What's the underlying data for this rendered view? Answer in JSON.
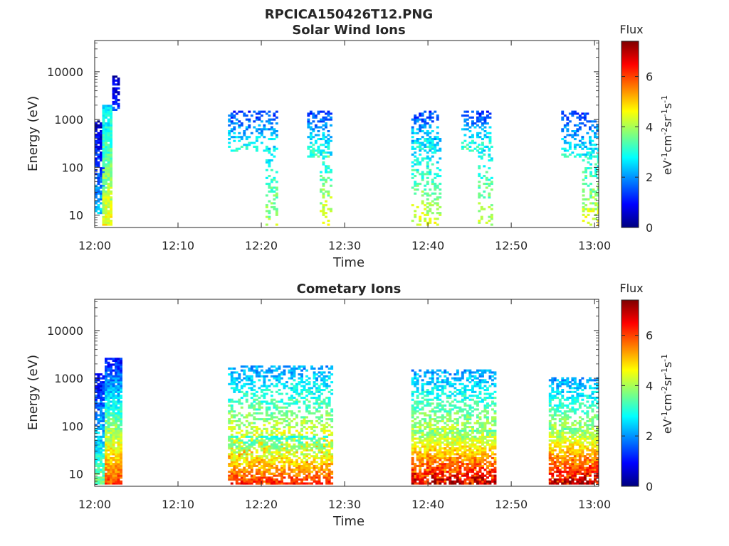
{
  "figure_title": "RPCICA150426T12.PNG",
  "colorbar": {
    "title": "Flux",
    "unit_parts": [
      "eV",
      "-1",
      "cm",
      "-2",
      "sr",
      "-1",
      "s",
      "-1"
    ],
    "range": [
      0,
      7.4
    ],
    "ticks": [
      "0",
      "2",
      "4",
      "6"
    ],
    "colormap": [
      "#00007f",
      "#0000ff",
      "#007fff",
      "#00ffff",
      "#7fff7f",
      "#ffff00",
      "#ff7f00",
      "#ff0000",
      "#7f0000"
    ]
  },
  "chart_data": [
    {
      "type": "heatmap",
      "title": "Solar Wind Ions",
      "xlabel": "Time",
      "ylabel": "Energy (eV)",
      "x_ticks": [
        "12:00",
        "12:10",
        "12:20",
        "12:30",
        "12:40",
        "12:50",
        "13:00"
      ],
      "x_range_min": [
        0,
        60.5
      ],
      "y_scale": "log",
      "y_range_eV": [
        5.5,
        45000
      ],
      "y_ticks": [
        "10",
        "100",
        "1000",
        "10000"
      ],
      "bursts": [
        {
          "t0": 0.0,
          "t1": 0.9,
          "emin": 10,
          "emax": 900,
          "fmin": 0.4,
          "fmax": 2.4,
          "dens": 0.75
        },
        {
          "t0": 0.9,
          "t1": 2.1,
          "emin": 6,
          "emax": 2000,
          "fmin": 2.5,
          "fmax": 4.6,
          "dens": 0.95
        },
        {
          "t0": 2.1,
          "t1": 2.9,
          "emin": 1500,
          "emax": 8000,
          "fmin": 0.4,
          "fmax": 1.3,
          "dens": 0.7
        },
        {
          "t0": 16.0,
          "t1": 22.0,
          "emin": 200,
          "emax": 1500,
          "fmin": 1.2,
          "fmax": 3.2,
          "dens": 0.35
        },
        {
          "t0": 20.5,
          "t1": 22.0,
          "emin": 6,
          "emax": 300,
          "fmin": 2.5,
          "fmax": 4.0,
          "dens": 0.3
        },
        {
          "t0": 25.5,
          "t1": 28.5,
          "emin": 150,
          "emax": 1500,
          "fmin": 1.2,
          "fmax": 3.4,
          "dens": 0.4
        },
        {
          "t0": 27.0,
          "t1": 28.5,
          "emin": 6,
          "emax": 200,
          "fmin": 2.5,
          "fmax": 4.8,
          "dens": 0.35
        },
        {
          "t0": 38.0,
          "t1": 41.0,
          "emin": 200,
          "emax": 1500,
          "fmin": 1.2,
          "fmax": 3.2,
          "dens": 0.35
        },
        {
          "t0": 38.0,
          "t1": 41.5,
          "emin": 6,
          "emax": 400,
          "fmin": 2.2,
          "fmax": 4.5,
          "dens": 0.3
        },
        {
          "t0": 44.0,
          "t1": 47.5,
          "emin": 200,
          "emax": 1500,
          "fmin": 1.2,
          "fmax": 3.4,
          "dens": 0.4
        },
        {
          "t0": 46.0,
          "t1": 47.5,
          "emin": 6,
          "emax": 300,
          "fmin": 2.5,
          "fmax": 4.2,
          "dens": 0.35
        },
        {
          "t0": 56.0,
          "t1": 60.5,
          "emin": 150,
          "emax": 1500,
          "fmin": 1.2,
          "fmax": 3.0,
          "dens": 0.35
        },
        {
          "t0": 58.5,
          "t1": 60.5,
          "emin": 6,
          "emax": 300,
          "fmin": 2.5,
          "fmax": 4.5,
          "dens": 0.35
        }
      ]
    },
    {
      "type": "heatmap",
      "title": "Cometary Ions",
      "xlabel": "Time",
      "ylabel": "Energy (eV)",
      "x_ticks": [
        "12:00",
        "12:10",
        "12:20",
        "12:30",
        "12:40",
        "12:50",
        "13:00"
      ],
      "x_range_min": [
        0,
        60.5
      ],
      "y_scale": "log",
      "y_range_eV": [
        5.5,
        45000
      ],
      "y_ticks": [
        "10",
        "100",
        "1000",
        "10000"
      ],
      "bursts": [
        {
          "t0": 0.0,
          "t1": 1.2,
          "emin": 6,
          "emax": 1200,
          "fmin": 0.8,
          "fmax": 3.6,
          "dens": 0.8
        },
        {
          "t0": 1.2,
          "t1": 3.0,
          "emin": 6,
          "emax": 2500,
          "fmin": 1.0,
          "fmax": 6.0,
          "dens": 0.9
        },
        {
          "t0": 16.0,
          "t1": 28.5,
          "emin": 6,
          "emax": 1800,
          "fmin": 2.0,
          "fmax": 6.0,
          "dens": 0.45
        },
        {
          "t0": 16.0,
          "t1": 28.5,
          "emin": 6,
          "emax": 60,
          "fmin": 3.0,
          "fmax": 6.3,
          "dens": 0.5
        },
        {
          "t0": 38.0,
          "t1": 48.0,
          "emin": 6,
          "emax": 1500,
          "fmin": 2.0,
          "fmax": 6.0,
          "dens": 0.5
        },
        {
          "t0": 38.0,
          "t1": 48.0,
          "emin": 6,
          "emax": 80,
          "fmin": 3.5,
          "fmax": 7.2,
          "dens": 0.55
        },
        {
          "t0": 54.5,
          "t1": 60.5,
          "emin": 6,
          "emax": 1000,
          "fmin": 2.0,
          "fmax": 6.2,
          "dens": 0.5
        },
        {
          "t0": 54.5,
          "t1": 60.5,
          "emin": 6,
          "emax": 90,
          "fmin": 3.5,
          "fmax": 7.2,
          "dens": 0.55
        }
      ]
    }
  ]
}
